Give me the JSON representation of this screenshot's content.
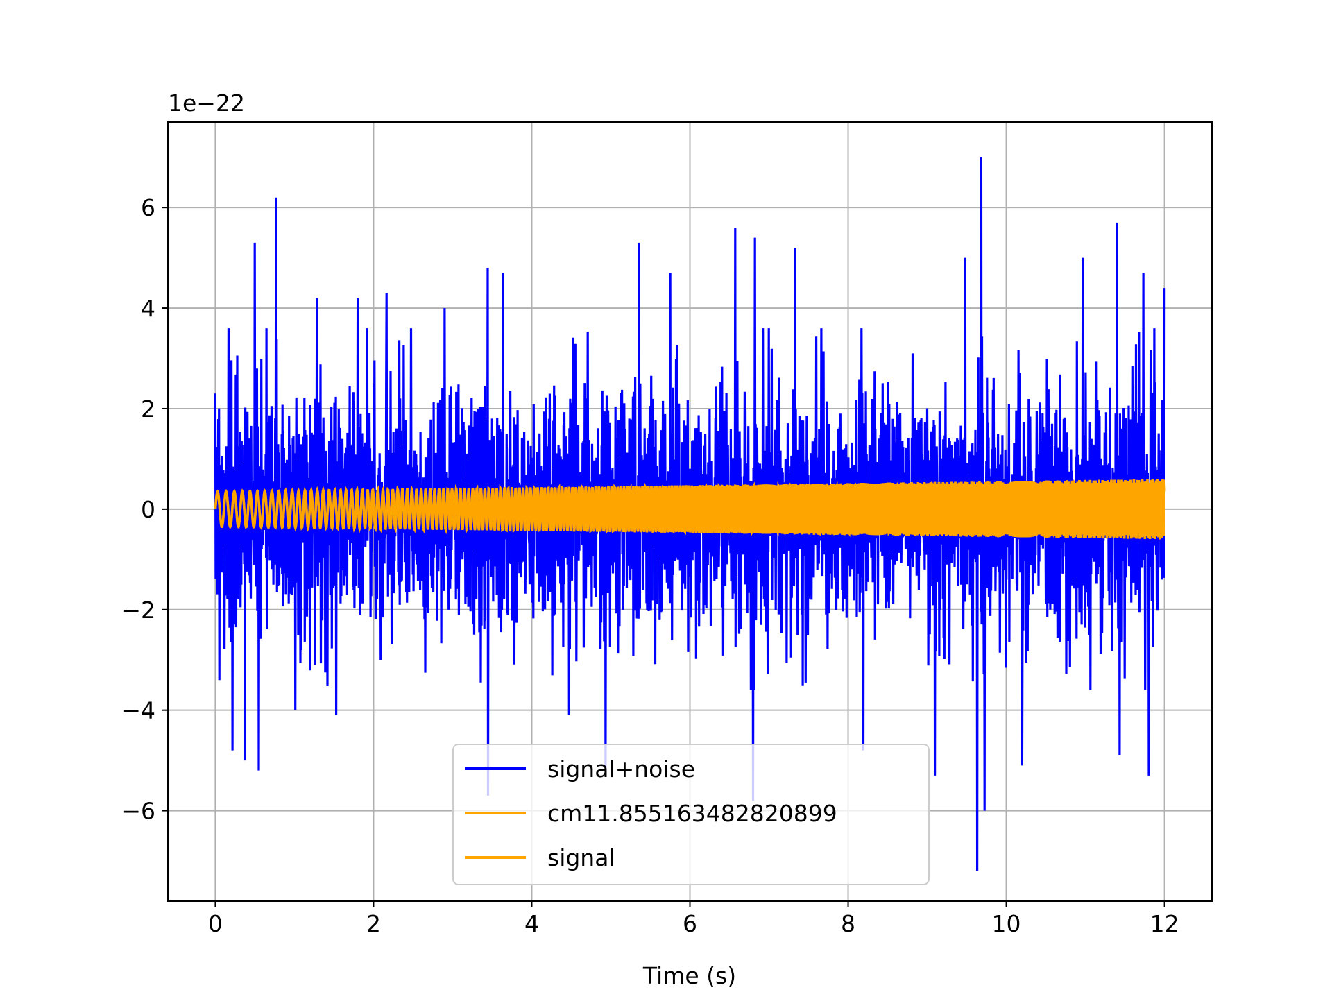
{
  "chart_data": {
    "type": "line",
    "title": "",
    "xlabel": "Time (s)",
    "ylabel": "",
    "offset_text": "1e−22",
    "xlim": [
      -0.6,
      12.6
    ],
    "ylim": [
      -7.8,
      7.7
    ],
    "x_ticks": [
      0,
      2,
      4,
      6,
      8,
      10,
      12
    ],
    "y_ticks": [
      -6,
      -4,
      -2,
      0,
      2,
      4,
      6
    ],
    "x_tick_labels": [
      "0",
      "2",
      "4",
      "6",
      "8",
      "10",
      "12"
    ],
    "y_tick_labels": [
      "−6",
      "−4",
      "−2",
      "0",
      "2",
      "4",
      "6"
    ],
    "grid": true,
    "legend_position": "lower center",
    "series": [
      {
        "name": "signal+noise",
        "color": "#0000ff",
        "description_of_shape": "dense noise spanning 0 to 12 s",
        "typical_range": [
          -3.0,
          3.0
        ],
        "notable_peaks": [
          {
            "x": 0.0,
            "y": 2.3
          },
          {
            "x": 0.05,
            "y": -3.4
          },
          {
            "x": 0.22,
            "y": -4.8
          },
          {
            "x": 0.37,
            "y": -5.0
          },
          {
            "x": 0.5,
            "y": 5.3
          },
          {
            "x": 0.55,
            "y": -5.2
          },
          {
            "x": 0.77,
            "y": 6.2
          },
          {
            "x": 1.02,
            "y": -4.0
          },
          {
            "x": 1.28,
            "y": 4.2
          },
          {
            "x": 1.53,
            "y": -4.1
          },
          {
            "x": 1.8,
            "y": 4.2
          },
          {
            "x": 2.17,
            "y": 4.3
          },
          {
            "x": 2.9,
            "y": 4.0
          },
          {
            "x": 3.44,
            "y": 4.8
          },
          {
            "x": 3.45,
            "y": -5.7
          },
          {
            "x": 3.65,
            "y": 4.7
          },
          {
            "x": 4.47,
            "y": -4.1
          },
          {
            "x": 4.93,
            "y": -5.2
          },
          {
            "x": 5.36,
            "y": 5.3
          },
          {
            "x": 5.75,
            "y": 4.7
          },
          {
            "x": 6.57,
            "y": 5.6
          },
          {
            "x": 6.8,
            "y": -5.8
          },
          {
            "x": 6.82,
            "y": 5.4
          },
          {
            "x": 7.33,
            "y": 5.2
          },
          {
            "x": 8.19,
            "y": -4.8
          },
          {
            "x": 9.1,
            "y": -5.3
          },
          {
            "x": 9.48,
            "y": 5.0
          },
          {
            "x": 9.63,
            "y": -7.2
          },
          {
            "x": 9.68,
            "y": 7.0
          },
          {
            "x": 9.73,
            "y": -6.0
          },
          {
            "x": 10.2,
            "y": -5.1
          },
          {
            "x": 10.97,
            "y": 5.0
          },
          {
            "x": 11.4,
            "y": 5.7
          },
          {
            "x": 11.43,
            "y": -4.9
          },
          {
            "x": 11.73,
            "y": 4.7
          },
          {
            "x": 11.8,
            "y": -5.3
          },
          {
            "x": 12.0,
            "y": 4.4
          }
        ]
      },
      {
        "name": "cm11.855163482820899",
        "color": "#ffa500",
        "envelope": [
          {
            "x": 0.0,
            "y": 0.35
          },
          {
            "x": 12.0,
            "y": 0.6
          }
        ]
      },
      {
        "name": "signal",
        "color": "#ffa500",
        "envelope": [
          {
            "x": 0.0,
            "y": 0.35
          },
          {
            "x": 12.0,
            "y": 0.6
          }
        ]
      }
    ]
  }
}
